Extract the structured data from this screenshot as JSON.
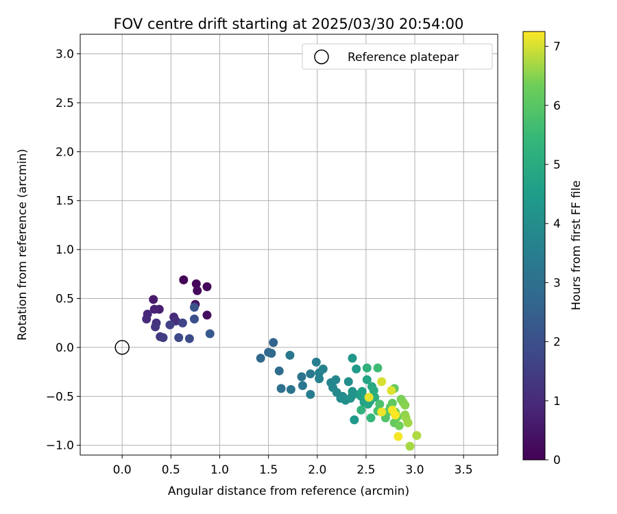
{
  "chart_data": {
    "type": "scatter",
    "title": "FOV centre drift starting at 2025/03/30 20:54:00",
    "xlabel": "Angular distance from reference (arcmin)",
    "ylabel": "Rotation from reference (arcmin)",
    "xlim": [
      -0.43,
      3.85
    ],
    "ylim": [
      -1.1,
      3.2
    ],
    "x_ticks": [
      0.0,
      0.5,
      1.0,
      1.5,
      2.0,
      2.5,
      3.0,
      3.5
    ],
    "x_tick_labels": [
      "0.0",
      "0.5",
      "1.0",
      "1.5",
      "2.0",
      "2.5",
      "3.0",
      "3.5"
    ],
    "y_ticks": [
      -1.0,
      -0.5,
      0.0,
      0.5,
      1.0,
      1.5,
      2.0,
      2.5,
      3.0
    ],
    "y_tick_labels": [
      "−1.0",
      "−0.5",
      "0.0",
      "0.5",
      "1.0",
      "1.5",
      "2.0",
      "2.5",
      "3.0"
    ],
    "grid": true,
    "legend": {
      "placement": "top-right",
      "entries": [
        "Reference platepar"
      ]
    },
    "reference": {
      "x": 0.0,
      "y": 0.0
    },
    "colorbar": {
      "label": "Hours from first FF file",
      "range": [
        0,
        7.25
      ],
      "ticks": [
        0,
        1,
        2,
        3,
        4,
        5,
        6,
        7
      ],
      "tick_labels": [
        "0",
        "1",
        "2",
        "3",
        "4",
        "5",
        "6",
        "7"
      ]
    },
    "points": [
      {
        "x": 0.63,
        "y": 0.69,
        "h": 0.05
      },
      {
        "x": 0.76,
        "y": 0.65,
        "h": 0.1
      },
      {
        "x": 0.87,
        "y": 0.62,
        "h": 0.15
      },
      {
        "x": 0.77,
        "y": 0.58,
        "h": 0.2
      },
      {
        "x": 0.87,
        "y": 0.33,
        "h": 0.3
      },
      {
        "x": 0.75,
        "y": 0.44,
        "h": 0.4
      },
      {
        "x": 0.32,
        "y": 0.49,
        "h": 0.6
      },
      {
        "x": 0.38,
        "y": 0.39,
        "h": 0.7
      },
      {
        "x": 0.33,
        "y": 0.39,
        "h": 0.8
      },
      {
        "x": 0.26,
        "y": 0.34,
        "h": 0.9
      },
      {
        "x": 0.25,
        "y": 0.29,
        "h": 1.0
      },
      {
        "x": 0.53,
        "y": 0.31,
        "h": 1.0
      },
      {
        "x": 0.55,
        "y": 0.27,
        "h": 1.1
      },
      {
        "x": 0.35,
        "y": 0.25,
        "h": 1.2
      },
      {
        "x": 0.34,
        "y": 0.21,
        "h": 1.3
      },
      {
        "x": 0.39,
        "y": 0.11,
        "h": 1.4
      },
      {
        "x": 0.42,
        "y": 0.1,
        "h": 1.5
      },
      {
        "x": 0.49,
        "y": 0.23,
        "h": 1.6
      },
      {
        "x": 0.62,
        "y": 0.25,
        "h": 1.7
      },
      {
        "x": 0.58,
        "y": 0.1,
        "h": 1.8
      },
      {
        "x": 0.69,
        "y": 0.09,
        "h": 1.9
      },
      {
        "x": 0.74,
        "y": 0.29,
        "h": 2.0
      },
      {
        "x": 0.74,
        "y": 0.41,
        "h": 2.1
      },
      {
        "x": 0.9,
        "y": 0.14,
        "h": 2.3
      },
      {
        "x": 1.55,
        "y": 0.05,
        "h": 2.6
      },
      {
        "x": 1.5,
        "y": -0.05,
        "h": 2.7
      },
      {
        "x": 1.53,
        "y": -0.06,
        "h": 2.8
      },
      {
        "x": 1.42,
        "y": -0.11,
        "h": 2.75
      },
      {
        "x": 1.61,
        "y": -0.24,
        "h": 2.9
      },
      {
        "x": 1.63,
        "y": -0.42,
        "h": 3.0
      },
      {
        "x": 1.73,
        "y": -0.43,
        "h": 3.1
      },
      {
        "x": 1.72,
        "y": -0.08,
        "h": 3.25
      },
      {
        "x": 1.84,
        "y": -0.3,
        "h": 3.1
      },
      {
        "x": 1.85,
        "y": -0.39,
        "h": 3.2
      },
      {
        "x": 1.93,
        "y": -0.27,
        "h": 3.3
      },
      {
        "x": 1.93,
        "y": -0.48,
        "h": 3.4
      },
      {
        "x": 1.99,
        "y": -0.15,
        "h": 3.5
      },
      {
        "x": 2.02,
        "y": -0.26,
        "h": 3.55
      },
      {
        "x": 2.02,
        "y": -0.32,
        "h": 3.6
      },
      {
        "x": 2.06,
        "y": -0.22,
        "h": 3.65
      },
      {
        "x": 2.14,
        "y": -0.36,
        "h": 3.7
      },
      {
        "x": 2.16,
        "y": -0.41,
        "h": 3.75
      },
      {
        "x": 2.19,
        "y": -0.33,
        "h": 3.8
      },
      {
        "x": 2.2,
        "y": -0.46,
        "h": 3.85
      },
      {
        "x": 2.24,
        "y": -0.52,
        "h": 3.9
      },
      {
        "x": 2.26,
        "y": -0.5,
        "h": 3.95
      },
      {
        "x": 2.29,
        "y": -0.54,
        "h": 4.0
      },
      {
        "x": 2.32,
        "y": -0.35,
        "h": 4.05
      },
      {
        "x": 2.34,
        "y": -0.52,
        "h": 4.1
      },
      {
        "x": 2.36,
        "y": -0.49,
        "h": 4.15
      },
      {
        "x": 2.36,
        "y": -0.45,
        "h": 4.2
      },
      {
        "x": 2.36,
        "y": -0.11,
        "h": 4.3
      },
      {
        "x": 2.38,
        "y": -0.74,
        "h": 4.35
      },
      {
        "x": 2.4,
        "y": -0.22,
        "h": 4.4
      },
      {
        "x": 2.43,
        "y": -0.48,
        "h": 4.45
      },
      {
        "x": 2.45,
        "y": -0.5,
        "h": 4.5
      },
      {
        "x": 2.46,
        "y": -0.45,
        "h": 4.6
      },
      {
        "x": 2.48,
        "y": -0.56,
        "h": 4.65
      },
      {
        "x": 2.5,
        "y": -0.52,
        "h": 4.7
      },
      {
        "x": 2.51,
        "y": -0.33,
        "h": 4.75
      },
      {
        "x": 2.52,
        "y": -0.58,
        "h": 4.8
      },
      {
        "x": 2.54,
        "y": -0.55,
        "h": 4.85
      },
      {
        "x": 2.56,
        "y": -0.4,
        "h": 4.9
      },
      {
        "x": 2.58,
        "y": -0.44,
        "h": 5.0
      },
      {
        "x": 2.59,
        "y": -0.51,
        "h": 5.1
      },
      {
        "x": 2.51,
        "y": -0.21,
        "h": 5.2
      },
      {
        "x": 2.45,
        "y": -0.64,
        "h": 5.3
      },
      {
        "x": 2.55,
        "y": -0.72,
        "h": 5.4
      },
      {
        "x": 2.62,
        "y": -0.21,
        "h": 5.6
      },
      {
        "x": 2.62,
        "y": -0.65,
        "h": 5.7
      },
      {
        "x": 2.64,
        "y": -0.58,
        "h": 5.8
      },
      {
        "x": 2.7,
        "y": -0.72,
        "h": 5.9
      },
      {
        "x": 2.72,
        "y": -0.66,
        "h": 6.0
      },
      {
        "x": 2.75,
        "y": -0.61,
        "h": 6.05
      },
      {
        "x": 2.77,
        "y": -0.57,
        "h": 6.1
      },
      {
        "x": 2.79,
        "y": -0.42,
        "h": 6.15
      },
      {
        "x": 2.79,
        "y": -0.77,
        "h": 6.2
      },
      {
        "x": 2.8,
        "y": -0.66,
        "h": 6.25
      },
      {
        "x": 2.82,
        "y": -0.71,
        "h": 6.3
      },
      {
        "x": 2.84,
        "y": -0.8,
        "h": 6.35
      },
      {
        "x": 2.86,
        "y": -0.53,
        "h": 6.4
      },
      {
        "x": 2.88,
        "y": -0.56,
        "h": 6.45
      },
      {
        "x": 2.9,
        "y": -0.59,
        "h": 6.5
      },
      {
        "x": 2.9,
        "y": -0.69,
        "h": 6.55
      },
      {
        "x": 2.91,
        "y": -0.72,
        "h": 6.6
      },
      {
        "x": 2.93,
        "y": -0.77,
        "h": 6.65
      },
      {
        "x": 2.95,
        "y": -1.01,
        "h": 6.7
      },
      {
        "x": 3.02,
        "y": -0.9,
        "h": 6.75
      },
      {
        "x": 2.66,
        "y": -0.35,
        "h": 7.0
      },
      {
        "x": 2.76,
        "y": -0.44,
        "h": 7.05
      },
      {
        "x": 2.53,
        "y": -0.51,
        "h": 7.1
      },
      {
        "x": 2.66,
        "y": -0.66,
        "h": 7.15
      },
      {
        "x": 2.83,
        "y": -0.91,
        "h": 7.2
      },
      {
        "x": 2.77,
        "y": -0.64,
        "h": 7.2
      },
      {
        "x": 2.8,
        "y": -0.69,
        "h": 7.25
      }
    ]
  }
}
